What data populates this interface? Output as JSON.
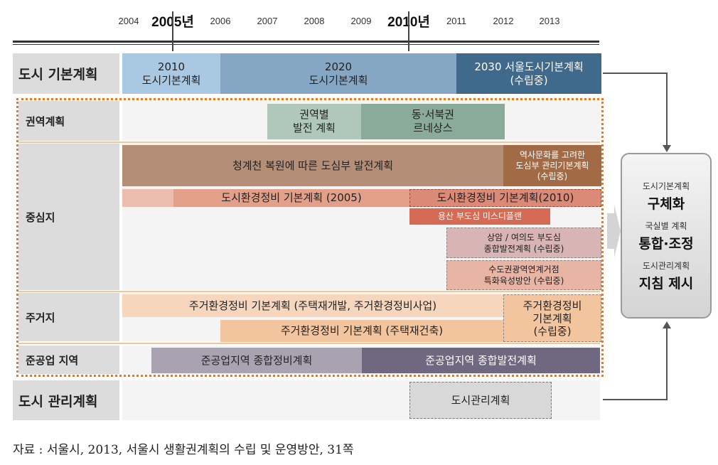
{
  "timeline": {
    "years": [
      "2004",
      "2005년",
      "2006",
      "2007",
      "2008",
      "2009",
      "2010년",
      "2011",
      "2012",
      "2013"
    ]
  },
  "rows": {
    "basic_plan": "도시 기본계획",
    "regional": "권역계획",
    "center": "중심지",
    "residential": "주거지",
    "industrial": "준공업 지역",
    "management": "도시 관리계획"
  },
  "bars": {
    "bp2010": [
      "2010",
      "도시기본계획"
    ],
    "bp2020": [
      "2020",
      "도시기본계획"
    ],
    "bp2030": [
      "2030 서울도시기본계획",
      "(수립중)"
    ],
    "regional_dev": [
      "권역별",
      "발전 계획"
    ],
    "dongseobuk": [
      "동·서북권",
      "르네상스"
    ],
    "cheonggye": "청계천 복원에 따른 도심부 발전계획",
    "history": [
      "역사문화를 고려한",
      "도심부 관리기본계획",
      "(수립중)"
    ],
    "env2005": "도시환경정비 기본계획 (2005)",
    "env2010": "도시환경정비 기본계획(2010)",
    "yongsan": "용산 부도심 미스디플랜",
    "sangam": [
      "상암 / 여의도 부도심",
      "종합발전계획 (수립중)"
    ],
    "capital": [
      "수도권광역연계거점",
      "특화육성방안 (수립중)"
    ],
    "res1": "주거환경정비 기본계획 (주택재개발, 주거환경정비사업)",
    "res2": "주거환경정비 기본계획 (주택재건축)",
    "res3": [
      "주거환경정비",
      "기본계획",
      "(수립중)"
    ],
    "ind1": "준공업지역 종합정비계획",
    "ind2": "준공업지역 종합발전계획",
    "mgmt": "도시관리계획"
  },
  "outcome": {
    "l1": "도시기본계획",
    "b1": "구체화",
    "l2": "국실별 계획",
    "b2": "통합·조정",
    "l3": "도시관리계획",
    "b3": "지침 제시"
  },
  "source": "자료 : 서울시, 2013, 서울시 생활권계획의 수립 및 운영방안, 31쪽",
  "colors": {
    "light_blue": "#a9c8e2",
    "mid_blue": "#86a7c3",
    "dark_blue": "#3f6a8c",
    "sage1": "#b0c8bc",
    "sage2": "#8aab9a",
    "brown": "#b58e78",
    "brown_dark": "#a26a45",
    "salmon": "#e2a08a",
    "red": "#d56a55",
    "pink": "#d8b4b4",
    "peach": "#f6d7be",
    "peach2": "#f3c59e",
    "gray1": "#a9a3b1",
    "gray2": "#6f6880",
    "orange_dash": "#e47a28"
  }
}
